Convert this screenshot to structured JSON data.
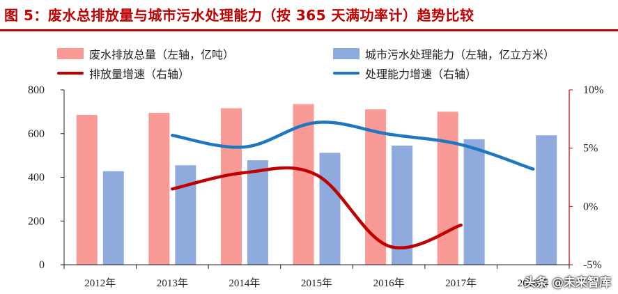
{
  "title": "图 5：废水总排放量与城市污水处理能力（按 365 天满功率计）趋势比较",
  "watermark": "头条 @未来智库",
  "colors": {
    "discharge_bar": "#fa9a96",
    "capacity_bar": "#8faadc",
    "discharge_line": "#c00000",
    "capacity_line": "#1f77c0",
    "right_axis": "#c00000",
    "axis": "#222222"
  },
  "chart_data": {
    "type": "bar",
    "categories": [
      "2012年",
      "2013年",
      "2014年",
      "2015年",
      "2016年",
      "2017年",
      "2018年"
    ],
    "y_left": {
      "ylim": [
        0,
        800
      ],
      "ticks": [
        0,
        200,
        400,
        600,
        800
      ]
    },
    "y_right": {
      "ylim": [
        -5,
        10
      ],
      "ticks": [
        -5,
        0,
        5,
        10
      ],
      "tick_labels": [
        "-5%",
        "0%",
        "5%",
        "10%"
      ]
    },
    "series": [
      {
        "name": "废水排放总量（左轴，亿吨）",
        "type": "bar",
        "axis": "left",
        "values": [
          685,
          695,
          716,
          735,
          711,
          700,
          null
        ]
      },
      {
        "name": "城市污水处理能力（左轴，亿立方米）",
        "type": "bar",
        "axis": "left",
        "values": [
          428,
          455,
          478,
          512,
          545,
          574,
          592
        ]
      },
      {
        "name": "排放量增速（右轴）",
        "type": "line",
        "axis": "right",
        "values": [
          null,
          1.5,
          2.9,
          2.7,
          -3.4,
          -1.6,
          null
        ]
      },
      {
        "name": "处理能力增速（右轴）",
        "type": "line",
        "axis": "right",
        "values": [
          null,
          6.1,
          5.1,
          7.2,
          6.2,
          5.3,
          3.2
        ]
      }
    ],
    "legend_position": "top"
  }
}
